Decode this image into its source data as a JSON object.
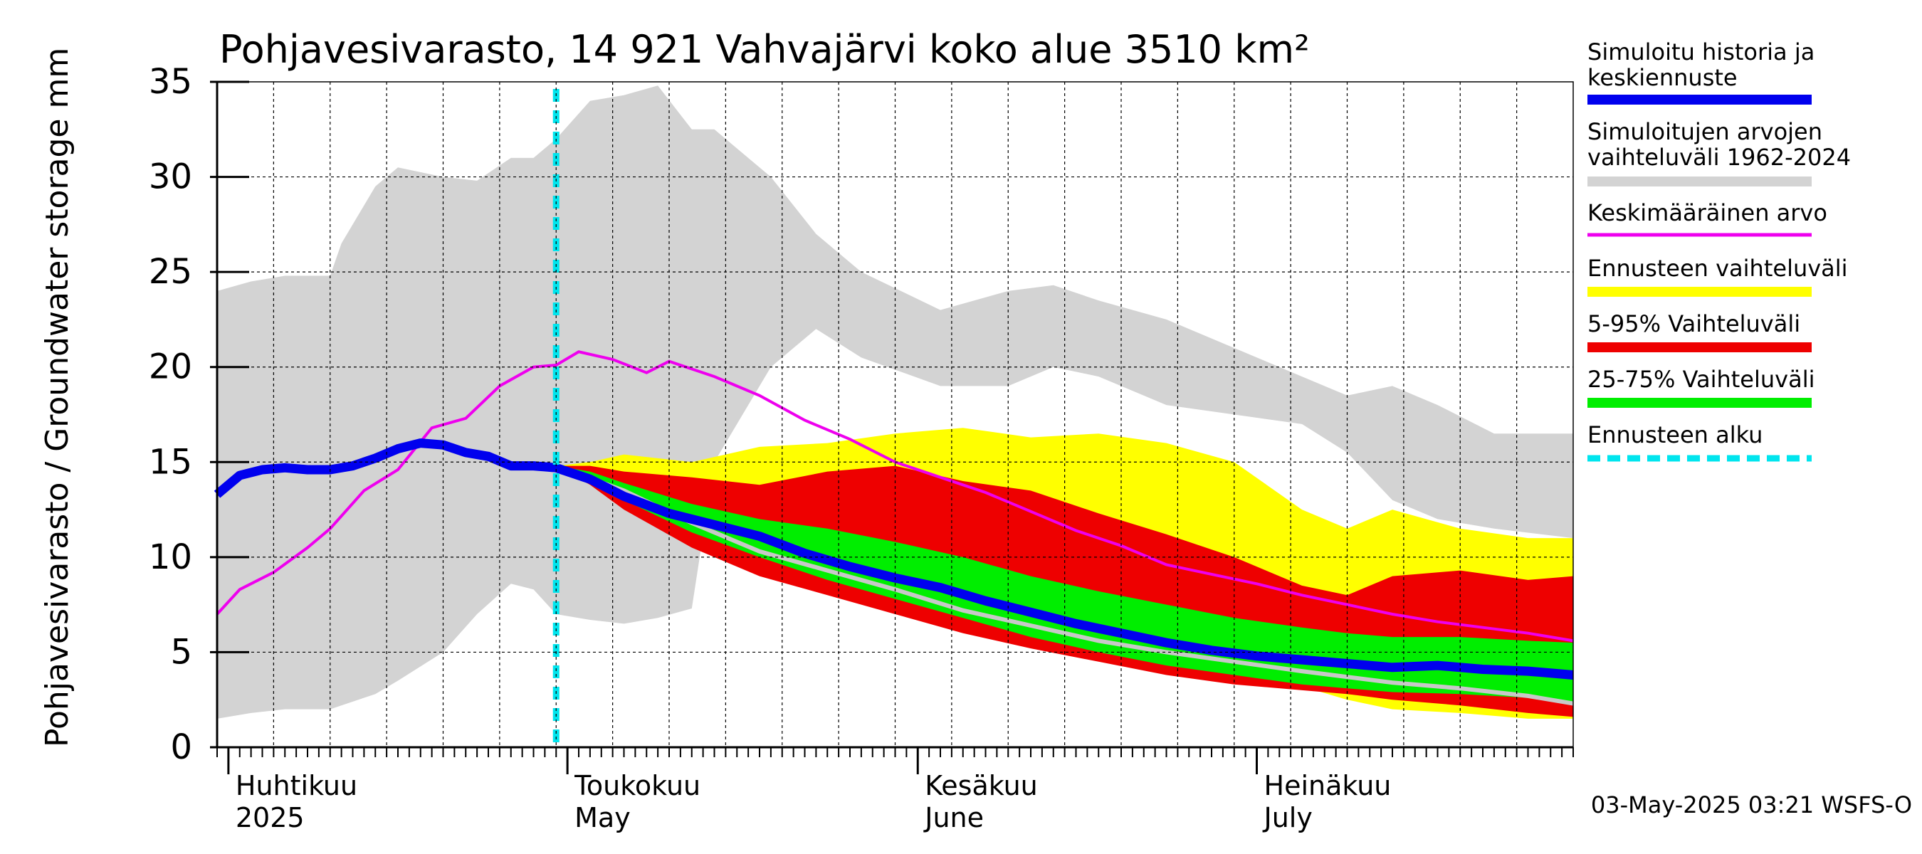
{
  "chart_data": {
    "type": "area",
    "title": "Pohjavesivarasto, 14 921 Vahvajärvi koko alue 3510 km²",
    "ylabel": "Pohjavesivarasto / Groundwater storage   mm",
    "ylim": [
      0,
      35
    ],
    "yticks": [
      "0",
      "5",
      "10",
      "15",
      "20",
      "25",
      "30",
      "35"
    ],
    "xlim": [
      0,
      120
    ],
    "x_unit": "days since 2025-03-31",
    "grid": true,
    "legend_position": "right",
    "forecast_start_x": 30,
    "x_labels": [
      {
        "x": 1,
        "line1": "Huhtikuu",
        "line2": "2025"
      },
      {
        "x": 31,
        "line1": "Toukokuu",
        "line2": "May"
      },
      {
        "x": 62,
        "line1": "Kesäkuu",
        "line2": "June"
      },
      {
        "x": 92,
        "line1": "Heinäkuu",
        "line2": "July"
      }
    ],
    "legend": [
      {
        "label": "Simuloitu historia ja keskiennuste",
        "color": "#0000ee",
        "style": "solid-thick"
      },
      {
        "label": "Simuloitujen arvojen vaihteluväli 1962-2024",
        "color": "#d3d3d3",
        "style": "solid-thick"
      },
      {
        "label": "Keskimääräinen arvo",
        "color": "#ee00ee",
        "style": "solid-thin"
      },
      {
        "label": "Ennusteen vaihteluväli",
        "color": "#ffff00",
        "style": "solid-thick"
      },
      {
        "label": "5-95% Vaihteluväli",
        "color": "#ee0000",
        "style": "solid-thick"
      },
      {
        "label": "25-75% Vaihteluväli",
        "color": "#00ee00",
        "style": "solid-thick"
      },
      {
        "label": "Ennusteen alku",
        "color": "#00e5ee",
        "style": "dashed"
      }
    ],
    "series": {
      "hist_range": {
        "x": [
          0,
          3,
          6,
          10,
          11,
          14,
          16,
          20,
          23,
          26,
          28,
          30,
          33,
          36,
          39,
          42,
          44,
          49,
          53,
          57,
          64,
          70,
          74,
          78,
          84,
          90,
          96,
          100,
          104,
          108,
          113,
          120
        ],
        "low": [
          1.5,
          1.8,
          2.0,
          2.0,
          2.2,
          2.8,
          3.5,
          5.0,
          7.0,
          8.6,
          8.3,
          7.0,
          6.7,
          6.5,
          6.8,
          7.3,
          15.0,
          20.0,
          22.0,
          20.5,
          19.0,
          19.0,
          20.0,
          19.5,
          18.0,
          17.5,
          17.0,
          15.5,
          13.0,
          12.0,
          11.5,
          11.0
        ],
        "high": [
          24.0,
          24.5,
          24.8,
          24.8,
          26.5,
          29.5,
          30.5,
          30.0,
          29.8,
          31.0,
          31.0,
          32.0,
          34.0,
          34.3,
          34.8,
          32.5,
          32.5,
          30.0,
          27.0,
          25.0,
          23.0,
          24.0,
          24.3,
          23.5,
          22.5,
          21.0,
          19.5,
          18.5,
          19.0,
          18.0,
          16.5,
          16.5
        ]
      },
      "forecast_range": {
        "x": [
          30,
          33,
          36,
          42,
          48,
          54,
          60,
          66,
          72,
          78,
          84,
          90,
          96,
          100,
          104,
          110,
          116,
          120
        ],
        "low": [
          14.8,
          13.8,
          12.8,
          11.0,
          9.4,
          8.4,
          7.3,
          6.4,
          5.6,
          4.9,
          4.5,
          4.0,
          3.2,
          2.5,
          2.0,
          1.8,
          1.5,
          1.5
        ],
        "high": [
          14.8,
          15.0,
          15.4,
          15.0,
          15.8,
          16.0,
          16.5,
          16.8,
          16.3,
          16.5,
          16.0,
          15.0,
          12.5,
          11.5,
          12.5,
          11.5,
          11.0,
          11.0
        ]
      },
      "p5_95": {
        "x": [
          30,
          33,
          36,
          42,
          48,
          54,
          60,
          66,
          72,
          78,
          84,
          90,
          96,
          100,
          104,
          110,
          116,
          120
        ],
        "low": [
          14.8,
          13.8,
          12.5,
          10.5,
          9.0,
          8.0,
          7.0,
          6.0,
          5.2,
          4.5,
          3.8,
          3.3,
          3.0,
          2.8,
          2.5,
          2.2,
          1.8,
          1.6
        ],
        "high": [
          14.8,
          14.8,
          14.5,
          14.2,
          13.8,
          14.5,
          14.8,
          14.0,
          13.5,
          12.3,
          11.2,
          10.0,
          8.5,
          8.0,
          9.0,
          9.3,
          8.8,
          9.0
        ]
      },
      "p25_75": {
        "x": [
          30,
          33,
          36,
          42,
          48,
          54,
          60,
          66,
          72,
          78,
          84,
          90,
          96,
          100,
          104,
          110,
          116,
          120
        ],
        "low": [
          14.8,
          14.0,
          13.0,
          11.3,
          10.0,
          8.8,
          7.8,
          6.8,
          5.8,
          5.0,
          4.3,
          3.8,
          3.3,
          3.1,
          2.9,
          2.8,
          2.6,
          2.4
        ],
        "high": [
          14.8,
          14.5,
          13.9,
          12.8,
          12.0,
          11.5,
          10.8,
          10.0,
          9.0,
          8.2,
          7.5,
          6.8,
          6.3,
          6.0,
          5.8,
          5.8,
          5.6,
          5.5
        ]
      },
      "forecast_median": {
        "x": [
          30,
          36,
          42,
          48,
          54,
          60,
          66,
          72,
          78,
          84,
          90,
          96,
          100,
          104,
          110,
          116,
          120
        ],
        "y": [
          14.8,
          13.5,
          11.8,
          10.3,
          9.3,
          8.3,
          7.2,
          6.4,
          5.6,
          5.0,
          4.5,
          4.0,
          3.7,
          3.4,
          3.1,
          2.7,
          2.3
        ]
      },
      "mean": {
        "x": [
          0,
          2,
          5,
          8,
          10,
          13,
          16,
          19,
          22,
          25,
          28,
          30,
          32,
          35,
          38,
          40,
          44,
          48,
          52,
          56,
          60,
          64,
          68,
          72,
          76,
          80,
          84,
          88,
          92,
          96,
          100,
          104,
          108,
          112,
          116,
          120
        ],
        "y": [
          7.0,
          8.3,
          9.2,
          10.5,
          11.5,
          13.5,
          14.6,
          16.8,
          17.3,
          19.0,
          20.0,
          20.1,
          20.8,
          20.4,
          19.7,
          20.3,
          19.5,
          18.5,
          17.2,
          16.2,
          15.0,
          14.2,
          13.4,
          12.4,
          11.4,
          10.6,
          9.6,
          9.1,
          8.6,
          8.0,
          7.5,
          7.0,
          6.6,
          6.3,
          6.0,
          5.6
        ]
      },
      "simulated": {
        "x": [
          0,
          2,
          4,
          6,
          8,
          10,
          12,
          14,
          16,
          18,
          20,
          22,
          24,
          26,
          28,
          30,
          33,
          36,
          40,
          44,
          48,
          52,
          56,
          60,
          64,
          68,
          72,
          76,
          80,
          84,
          88,
          92,
          96,
          100,
          104,
          108,
          112,
          116,
          120
        ],
        "y": [
          13.3,
          14.3,
          14.6,
          14.7,
          14.6,
          14.6,
          14.8,
          15.2,
          15.7,
          16.0,
          15.9,
          15.5,
          15.3,
          14.8,
          14.8,
          14.7,
          14.1,
          13.2,
          12.3,
          11.7,
          11.1,
          10.2,
          9.5,
          8.9,
          8.4,
          7.7,
          7.1,
          6.5,
          6.0,
          5.5,
          5.1,
          4.8,
          4.6,
          4.4,
          4.2,
          4.3,
          4.1,
          4.0,
          3.8
        ]
      }
    },
    "footer": "03-May-2025 03:21 WSFS-O"
  }
}
